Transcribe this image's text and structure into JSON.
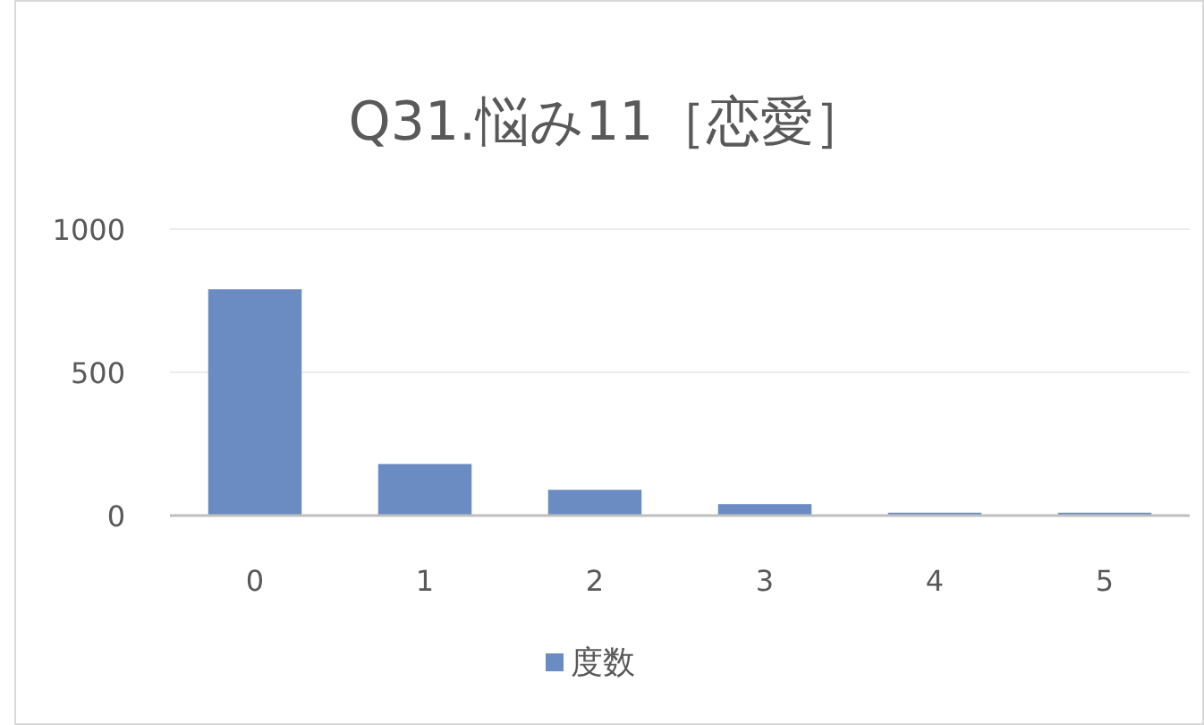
{
  "chart_data": {
    "type": "bar",
    "title": "Q31.悩み11［恋愛］",
    "categories": [
      "0",
      "1",
      "2",
      "3",
      "4",
      "5"
    ],
    "series": [
      {
        "name": "度数",
        "color": "#6b8cc2",
        "values": [
          790,
          180,
          90,
          40,
          10,
          10
        ]
      }
    ],
    "ylim": [
      0,
      1000
    ],
    "yticks": [
      0,
      500,
      1000
    ],
    "grid": "y",
    "legend": "bottom"
  }
}
